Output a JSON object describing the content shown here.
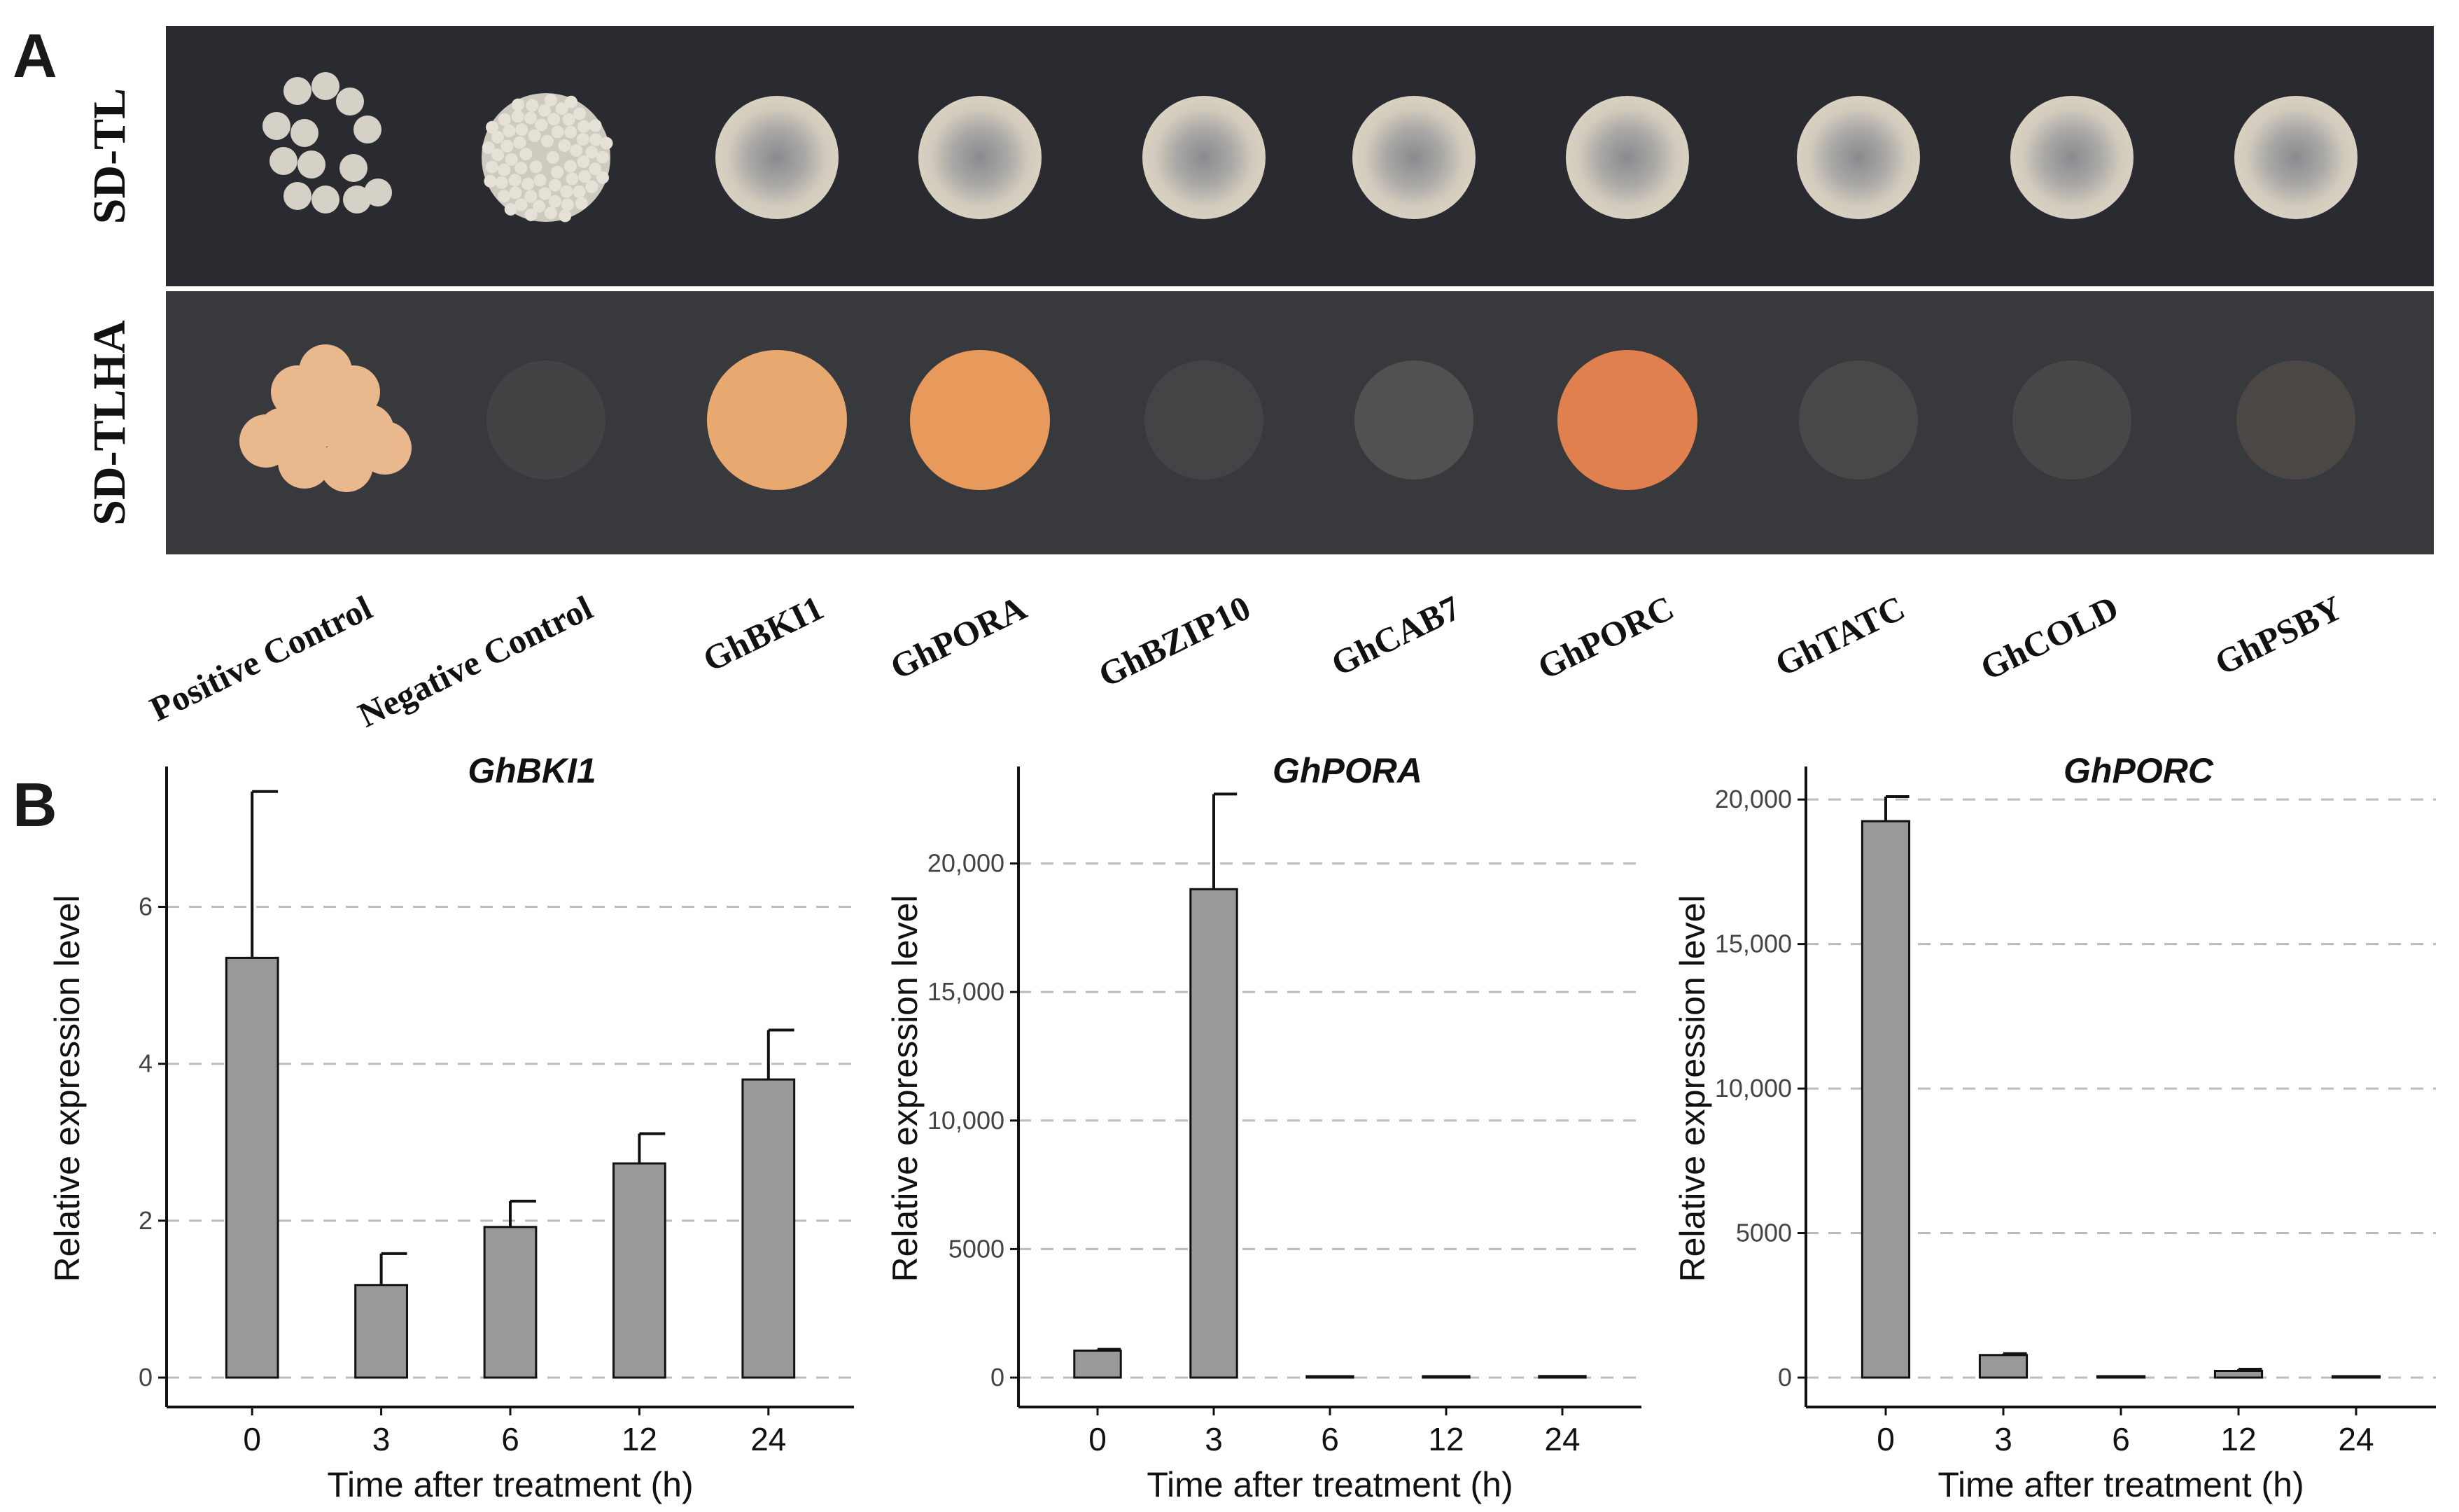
{
  "panel_a": {
    "label": "A",
    "rows": [
      {
        "label": "SD-TL",
        "plate_color": "#2a2b30"
      },
      {
        "label": "SD-TLHA",
        "plate_color": "#3a3b3e"
      }
    ],
    "samples": [
      {
        "name": "Positive Control",
        "sd_tl": "small colonies",
        "sd_tlha": "growth",
        "sd_tlha_color": "#eab88d"
      },
      {
        "name": "Negative Control",
        "sd_tl": "colonies",
        "sd_tlha": "no growth",
        "sd_tlha_color": "#47474a"
      },
      {
        "name": "GhBKI1",
        "sd_tl": "growth",
        "sd_tlha": "growth",
        "sd_tlha_color": "#e8a970"
      },
      {
        "name": "GhPORA",
        "sd_tl": "growth",
        "sd_tlha": "growth",
        "sd_tlha_color": "#e89a5c"
      },
      {
        "name": "GhBZIP10",
        "sd_tl": "growth",
        "sd_tlha": "no growth",
        "sd_tlha_color": "#48484a"
      },
      {
        "name": "GhCAB7",
        "sd_tl": "growth",
        "sd_tlha": "no growth",
        "sd_tlha_color": "#5a5a5a"
      },
      {
        "name": "GhPORC",
        "sd_tl": "growth",
        "sd_tlha": "growth",
        "sd_tlha_color": "#e0804e"
      },
      {
        "name": "GhTATC",
        "sd_tl": "growth",
        "sd_tlha": "no growth",
        "sd_tlha_color": "#4e4d4e"
      },
      {
        "name": "GhCOLD",
        "sd_tl": "growth",
        "sd_tlha": "no growth",
        "sd_tlha_color": "#4e4c4c"
      },
      {
        "name": "GhPSBY",
        "sd_tl": "growth",
        "sd_tlha": "no growth",
        "sd_tlha_color": "#514c48"
      }
    ]
  },
  "panel_b": {
    "label": "B"
  },
  "chart_data": [
    {
      "type": "bar",
      "title": "GhBKI1",
      "xlabel": "Time after treatment (h)",
      "ylabel": "Relative expression level",
      "categories": [
        "0",
        "3",
        "6",
        "12",
        "24"
      ],
      "values": [
        5.35,
        1.18,
        1.92,
        2.73,
        3.8
      ],
      "error": [
        2.12,
        0.4,
        0.33,
        0.38,
        0.63
      ],
      "ylim": [
        0,
        7.7
      ],
      "yticks": [
        0,
        2,
        4,
        6
      ],
      "ytick_labels": [
        "0",
        "2",
        "4",
        "6"
      ],
      "grid": "horizontal dashed",
      "bar_color": "#999999"
    },
    {
      "type": "bar",
      "title": "GhPORA",
      "xlabel": "Time after treatment (h)",
      "ylabel": "Relative expression level",
      "categories": [
        "0",
        "3",
        "6",
        "12",
        "24"
      ],
      "values": [
        1050,
        19000,
        30,
        40,
        60
      ],
      "error": [
        50,
        3700,
        0,
        0,
        0
      ],
      "ylim": [
        0,
        23500
      ],
      "yticks": [
        0,
        5000,
        10000,
        15000,
        20000
      ],
      "ytick_labels": [
        "0",
        "5000",
        "10,000",
        "15,000",
        "20,000"
      ],
      "grid": "horizontal dashed",
      "bar_color": "#999999"
    },
    {
      "type": "bar",
      "title": "GhPORC",
      "xlabel": "Time after treatment (h)",
      "ylabel": "Relative expression level",
      "categories": [
        "0",
        "3",
        "6",
        "12",
        "24"
      ],
      "values": [
        19250,
        780,
        20,
        230,
        20
      ],
      "error": [
        850,
        50,
        0,
        60,
        0
      ],
      "ylim": [
        0,
        20900
      ],
      "yticks": [
        0,
        5000,
        10000,
        15000,
        20000
      ],
      "ytick_labels": [
        "0",
        "5000",
        "10,000",
        "15,000",
        "20,000"
      ],
      "grid": "horizontal dashed",
      "bar_color": "#999999"
    }
  ]
}
